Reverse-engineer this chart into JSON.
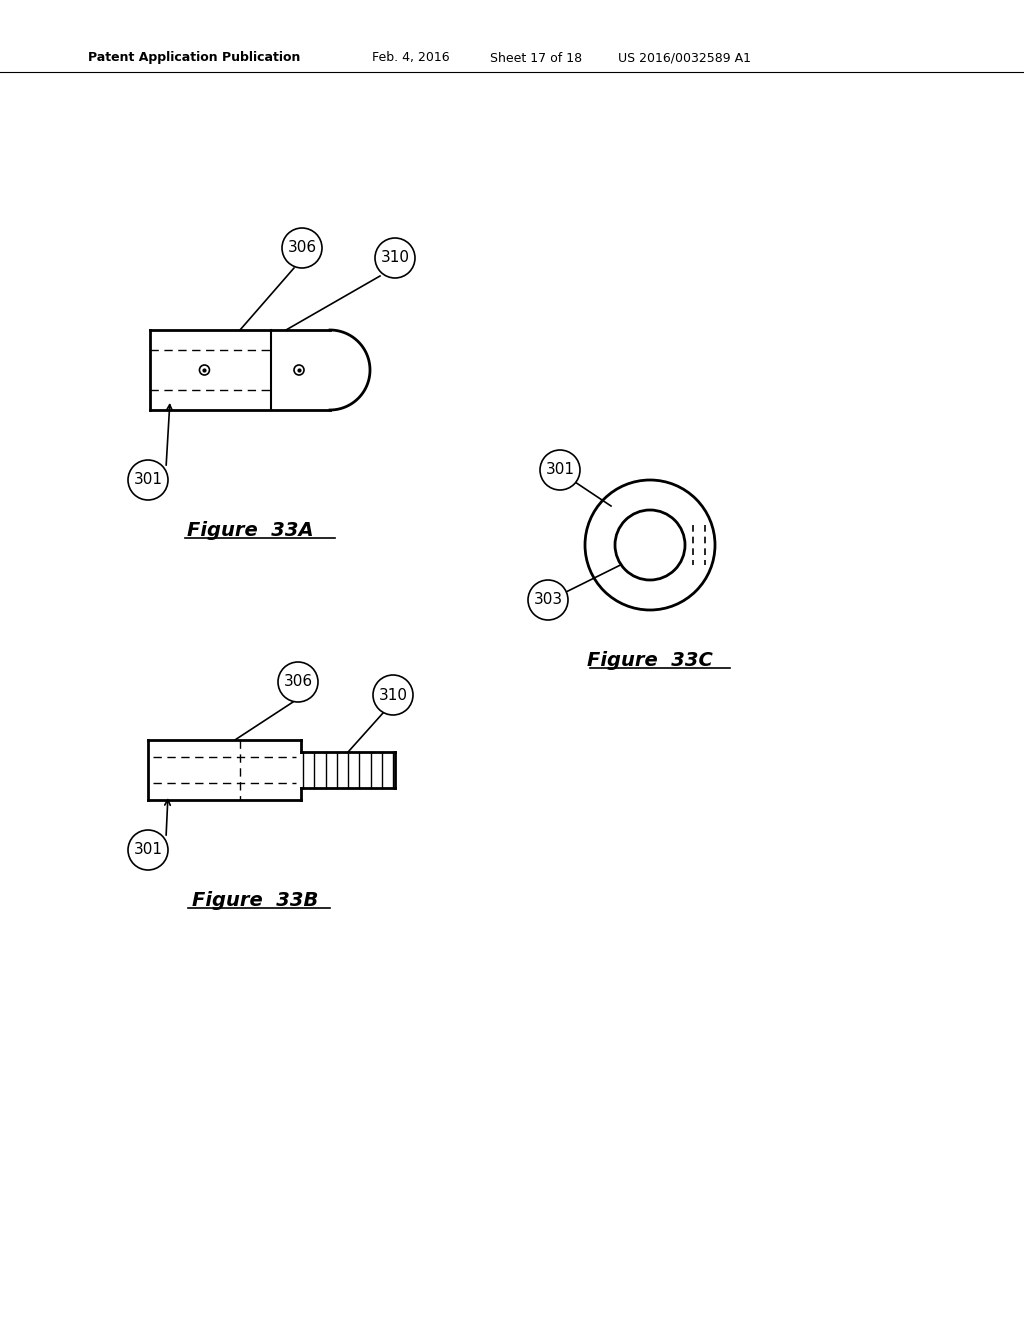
{
  "bg_color": "#ffffff",
  "header_text": "Patent Application Publication",
  "header_date": "Feb. 4, 2016",
  "header_sheet": "Sheet 17 of 18",
  "header_patent": "US 2016/0032589 A1",
  "fig33A_label": "Figure  33A",
  "fig33B_label": "Figure  33B",
  "fig33C_label": "Figure  33C",
  "label_301": "301",
  "label_306": "306",
  "label_310": "310",
  "label_303": "303"
}
